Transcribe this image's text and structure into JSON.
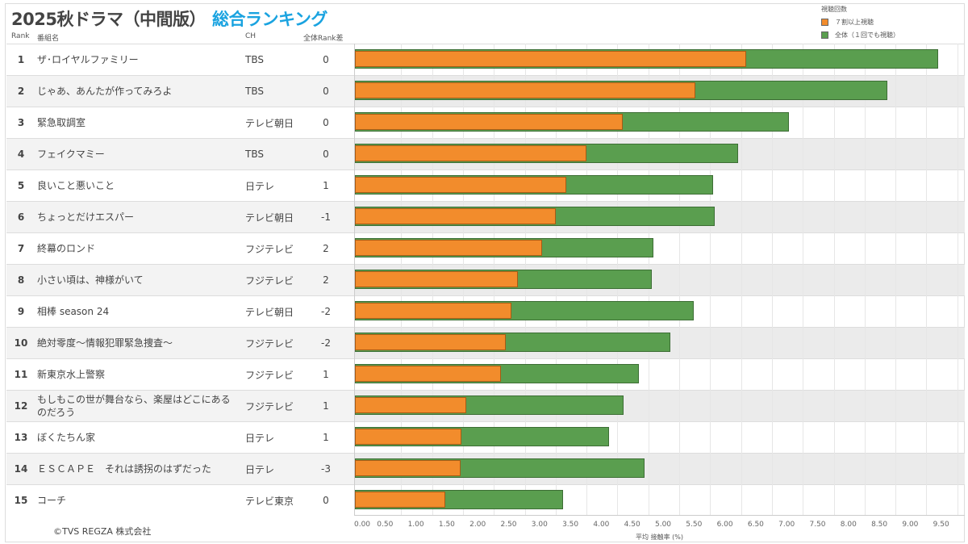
{
  "title": {
    "main": "2025秋ドラマ（中間版）",
    "accent": "総合ランキング"
  },
  "legend": {
    "title": "視聴回数",
    "items": [
      {
        "label": "７割以上視聴",
        "color": "#f28c2c"
      },
      {
        "label": "全体（１回でも視聴）",
        "color": "#5a9e4f"
      }
    ]
  },
  "headers": {
    "rank": "Rank",
    "name": "番組名",
    "ch": "CH",
    "diff": "全体Rank差"
  },
  "copyright": "©TVS REGZA 株式会社",
  "chart_data": {
    "type": "bar",
    "orientation": "horizontal",
    "xlabel": "平均 接触率 (%)",
    "xlim": [
      0,
      9.9
    ],
    "xticks": [
      "0.00",
      "0.50",
      "1.00",
      "1.50",
      "2.00",
      "2.50",
      "3.00",
      "3.50",
      "4.00",
      "4.50",
      "5.00",
      "5.50",
      "6.00",
      "6.50",
      "7.00",
      "7.50",
      "8.00",
      "8.50",
      "9.00",
      "9.50"
    ],
    "grid": true,
    "legend_placement": "top-right",
    "rows": [
      {
        "rank": "1",
        "name": "ザ･ロイヤルファミリー",
        "ch": "TBS",
        "diff": "0",
        "all": 9.44,
        "over70": 6.33
      },
      {
        "rank": "2",
        "name": "じゃあ、あんたが作ってみろよ",
        "ch": "TBS",
        "diff": "0",
        "all": 8.62,
        "over70": 5.51
      },
      {
        "rank": "3",
        "name": "緊急取調室",
        "ch": "テレビ朝日",
        "diff": "0",
        "all": 7.02,
        "over70": 4.33
      },
      {
        "rank": "4",
        "name": "フェイクマミー",
        "ch": "TBS",
        "diff": "0",
        "all": 6.2,
        "over70": 3.75
      },
      {
        "rank": "5",
        "name": "良いこと悪いこと",
        "ch": "日テレ",
        "diff": "1",
        "all": 5.8,
        "over70": 3.42
      },
      {
        "rank": "6",
        "name": "ちょっとだけエスパー",
        "ch": "テレビ朝日",
        "diff": "-1",
        "all": 5.82,
        "over70": 3.25
      },
      {
        "rank": "7",
        "name": "終幕のロンド",
        "ch": "フジテレビ",
        "diff": "2",
        "all": 4.83,
        "over70": 3.03
      },
      {
        "rank": "8",
        "name": "小さい頃は、神様がいて",
        "ch": "フジテレビ",
        "diff": "2",
        "all": 4.8,
        "over70": 2.64
      },
      {
        "rank": "9",
        "name": "相棒 season 24",
        "ch": "テレビ朝日",
        "diff": "-2",
        "all": 5.48,
        "over70": 2.53
      },
      {
        "rank": "10",
        "name": "絶対零度～情報犯罪緊急捜査～",
        "ch": "フジテレビ",
        "diff": "-2",
        "all": 5.1,
        "over70": 2.44
      },
      {
        "rank": "11",
        "name": "新東京水上警察",
        "ch": "フジテレビ",
        "diff": "1",
        "all": 4.6,
        "over70": 2.36
      },
      {
        "rank": "12",
        "name": "もしもこの世が舞台なら、楽屋はどこにあるのだろう",
        "ch": "フジテレビ",
        "diff": "1",
        "all": 4.35,
        "over70": 1.8
      },
      {
        "rank": "13",
        "name": "ぼくたちん家",
        "ch": "日テレ",
        "diff": "1",
        "all": 4.11,
        "over70": 1.72
      },
      {
        "rank": "14",
        "name": "ＥＳＣＡＰＥ　それは誘拐のはずだった",
        "ch": "日テレ",
        "diff": "-3",
        "all": 4.69,
        "over70": 1.71
      },
      {
        "rank": "15",
        "name": "コーチ",
        "ch": "テレビ東京",
        "diff": "0",
        "all": 3.37,
        "over70": 1.46
      }
    ]
  }
}
